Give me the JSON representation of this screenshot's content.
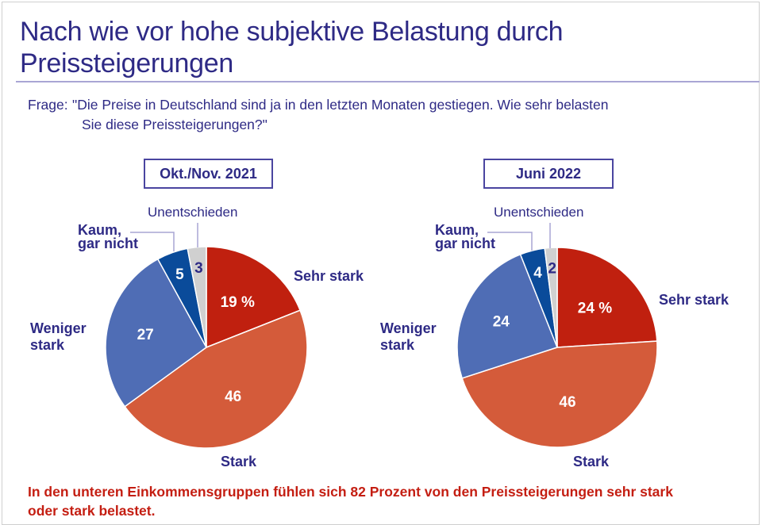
{
  "header": {
    "title": "Nach wie vor hohe subjektive Belastung durch Preissteigerungen",
    "question_label": "Frage:",
    "question_line1": "\"Die Preise in Deutschland sind ja in den letzten Monaten gestiegen. Wie sehr belasten",
    "question_line2": "Sie diese Preissteigerungen?\""
  },
  "colors": {
    "text_navy": "#2E2A85",
    "sehr_stark": "#C0200F",
    "stark": "#D45B3A",
    "weniger_stark": "#4F6DB5",
    "kaum": "#0A4B9A",
    "unentschieden": "#D0D0D0",
    "footnote": "#C41E12"
  },
  "chart_data": [
    {
      "type": "pie",
      "title": "Okt./Nov. 2021",
      "unit": "%",
      "slices": [
        {
          "key": "sehr_stark",
          "label": "Sehr stark",
          "value": 19,
          "display": "19 %"
        },
        {
          "key": "stark",
          "label": "Stark",
          "value": 46,
          "display": "46"
        },
        {
          "key": "weniger_stark",
          "label": "Weniger stark",
          "value": 27,
          "display": "27"
        },
        {
          "key": "kaum",
          "label": "Kaum, gar nicht",
          "value": 5,
          "display": "5"
        },
        {
          "key": "unentschieden",
          "label": "Unentschieden",
          "value": 3,
          "display": "3"
        }
      ]
    },
    {
      "type": "pie",
      "title": "Juni 2022",
      "unit": "%",
      "slices": [
        {
          "key": "sehr_stark",
          "label": "Sehr stark",
          "value": 24,
          "display": "24 %"
        },
        {
          "key": "stark",
          "label": "Stark",
          "value": 46,
          "display": "46"
        },
        {
          "key": "weniger_stark",
          "label": "Weniger stark",
          "value": 24,
          "display": "24"
        },
        {
          "key": "kaum",
          "label": "Kaum, gar nicht",
          "value": 4,
          "display": "4"
        },
        {
          "key": "unentschieden",
          "label": "Unentschieden",
          "value": 2,
          "display": "2"
        }
      ]
    }
  ],
  "labels": {
    "sehr_stark": "Sehr stark",
    "stark": "Stark",
    "weniger_line1": "Weniger",
    "weniger_line2": "stark",
    "kaum_line1": "Kaum,",
    "kaum_line2": "gar nicht",
    "unentschieden": "Unentschieden"
  },
  "footnote": {
    "line1": "In den unteren Einkommensgruppen fühlen sich 82 Prozent von den Preissteigerungen sehr stark",
    "line2": "oder stark belastet."
  }
}
